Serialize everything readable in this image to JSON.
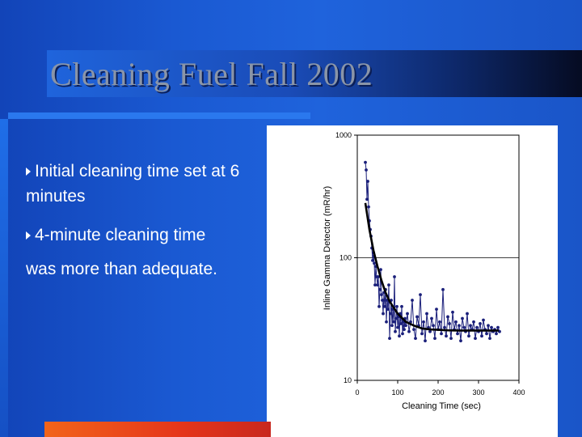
{
  "slide": {
    "title": "Cleaning Fuel Fall 2002",
    "bullets": [
      "Initial cleaning time set at 6 minutes",
      "4-minute cleaning time",
      "was more than adequate."
    ],
    "colors": {
      "background": "#1a59d2",
      "rule": "#2a78ee",
      "accent_bar": "#e5361a",
      "title_text": "#8a95a8"
    }
  },
  "chart_data": {
    "type": "scatter",
    "title": "",
    "xlabel": "Cleaning Time (sec)",
    "ylabel": "Inline Gamma Detector (mR/hr)",
    "xlim": [
      0,
      400
    ],
    "ylim": [
      10,
      1000
    ],
    "yscale": "log",
    "xticks": [
      "0",
      "100",
      "200",
      "300",
      "400"
    ],
    "yticks": [
      "10",
      "100",
      "1000"
    ],
    "grid": "horizontal at decades",
    "colors": {
      "points": "#1a1f7a",
      "fit": "#000000"
    },
    "series": [
      {
        "x": [
          20,
          22,
          24,
          26,
          28,
          30,
          32,
          34,
          36,
          38,
          40,
          42,
          44,
          46,
          48,
          50,
          52,
          54,
          56,
          58,
          60,
          62,
          64,
          66,
          68,
          70,
          72,
          74,
          76,
          78,
          80,
          82,
          84,
          86,
          88,
          90,
          92,
          94,
          96,
          98,
          100,
          102,
          104,
          106,
          108,
          110,
          112,
          114,
          116,
          118,
          120,
          124,
          128,
          132,
          136,
          140,
          144,
          148,
          152,
          156,
          160,
          164,
          168,
          172,
          176,
          180,
          184,
          188,
          192,
          196,
          200,
          204,
          208,
          212,
          216,
          220,
          224,
          228,
          232,
          236,
          240,
          244,
          248,
          252,
          256,
          260,
          264,
          268,
          272,
          276,
          280,
          284,
          288,
          292,
          296,
          300,
          304,
          308,
          312,
          316,
          320,
          324,
          328,
          332,
          336,
          340,
          344,
          348,
          352
        ],
        "y": [
          600,
          520,
          300,
          420,
          260,
          200,
          170,
          150,
          120,
          95,
          110,
          90,
          60,
          85,
          70,
          60,
          70,
          40,
          55,
          80,
          50,
          45,
          35,
          52,
          40,
          55,
          30,
          45,
          38,
          60,
          22,
          35,
          45,
          28,
          38,
          30,
          70,
          25,
          32,
          40,
          27,
          33,
          23,
          35,
          29,
          40,
          24,
          30,
          26,
          32,
          28,
          35,
          25,
          30,
          45,
          26,
          22,
          33,
          28,
          50,
          24,
          30,
          21,
          35,
          27,
          25,
          32,
          28,
          22,
          38,
          26,
          30,
          24,
          55,
          27,
          23,
          33,
          29,
          22,
          36,
          26,
          30,
          24,
          28,
          21,
          32,
          27,
          25,
          35,
          23,
          28,
          26,
          30,
          22,
          27,
          25,
          29,
          23,
          31,
          26,
          24,
          28,
          22,
          27,
          25,
          26,
          24,
          27,
          25
        ]
      }
    ],
    "fit": {
      "x": [
        20,
        30,
        40,
        50,
        60,
        70,
        80,
        100,
        120,
        140,
        160,
        180,
        200,
        225,
        250,
        275,
        300,
        325,
        350
      ],
      "y": [
        280,
        170,
        115,
        85,
        65,
        52,
        44,
        35,
        30,
        28,
        26.5,
        26,
        25.8,
        25.6,
        25.5,
        25.5,
        25.5,
        25.5,
        25.5
      ]
    }
  }
}
